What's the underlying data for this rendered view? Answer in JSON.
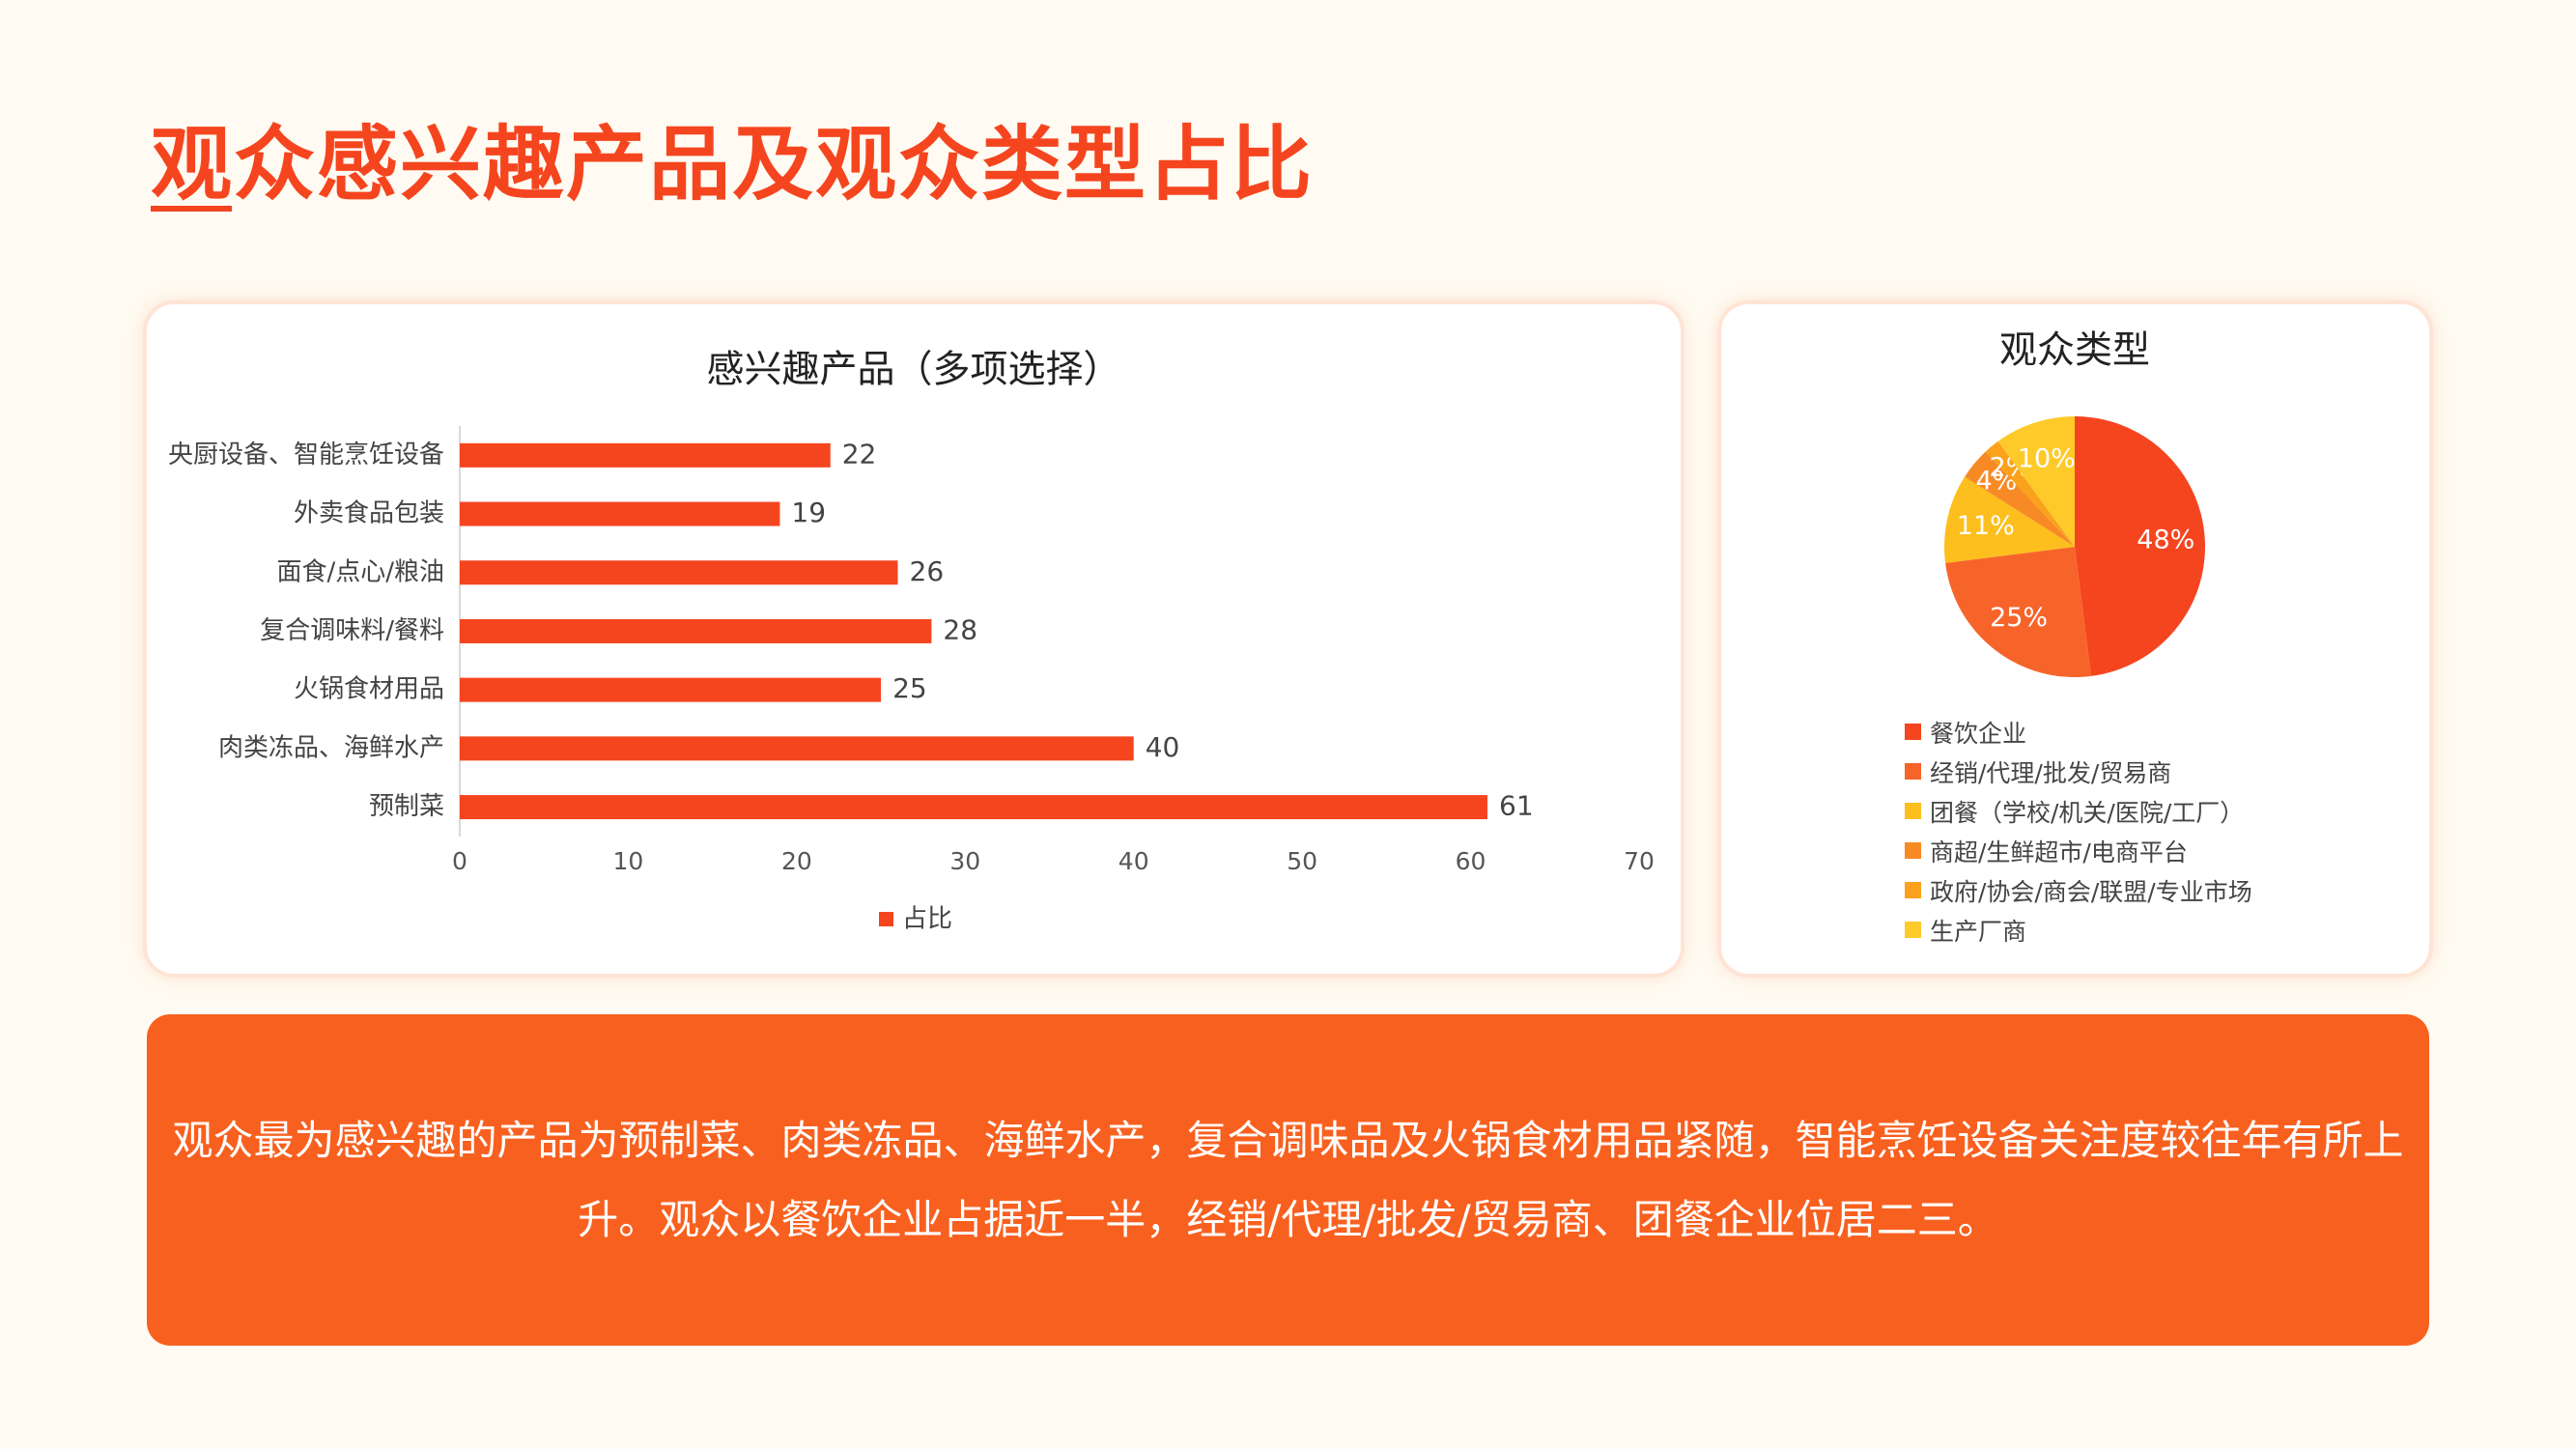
{
  "page": {
    "title": "观众感兴趣产品及观众类型占比",
    "summary": "观众最为感兴趣的产品为预制菜、肉类冻品、海鲜水产，复合调味品及火锅食材用品紧随，智能烹饪设备关注度较往年有所上升。观众以餐饮企业占据近一半，经销/代理/批发/贸易商、团餐企业位居二三。"
  },
  "colors": {
    "accent": "#f5451f",
    "summary_bg": "#f8601f",
    "page_bg": "#fffbf2"
  },
  "chart_data": [
    {
      "type": "bar",
      "orientation": "horizontal",
      "title": "感兴趣产品（多项选择）",
      "categories": [
        "央厨设备、智能烹饪设备",
        "外卖食品包装",
        "面食/点心/粮油",
        "复合调味料/餐料",
        "火锅食材用品",
        "肉类冻品、海鲜水产",
        "预制菜"
      ],
      "series": [
        {
          "name": "占比",
          "values": [
            22,
            19,
            26,
            28,
            25,
            40,
            61
          ],
          "color": "#f5451f"
        }
      ],
      "xlim": [
        0,
        70
      ],
      "xticks": [
        0,
        10,
        20,
        30,
        40,
        50,
        60,
        70
      ],
      "data_labels": true,
      "grid": false,
      "legend": "bottom"
    },
    {
      "type": "pie",
      "title": "观众类型",
      "slices": [
        {
          "label": "餐饮企业",
          "value": 48,
          "display": "48%",
          "color": "#f5451f"
        },
        {
          "label": "经销/代理/批发/贸易商",
          "value": 25,
          "display": "25%",
          "color": "#f7642a"
        },
        {
          "label": "团餐（学校/机关/医院/工厂）",
          "value": 11,
          "display": "11%",
          "color": "#fcbf1e"
        },
        {
          "label": "商超/生鲜超市/电商平台",
          "value": 4,
          "display": "4%",
          "color": "#f78a25"
        },
        {
          "label": "政府/协会/商会/联盟/专业市场",
          "value": 2,
          "display": "2%",
          "color": "#fba21c"
        },
        {
          "label": "生产厂商",
          "value": 10,
          "display": "10%",
          "color": "#fdca2a"
        }
      ],
      "legend": "bottom"
    }
  ]
}
